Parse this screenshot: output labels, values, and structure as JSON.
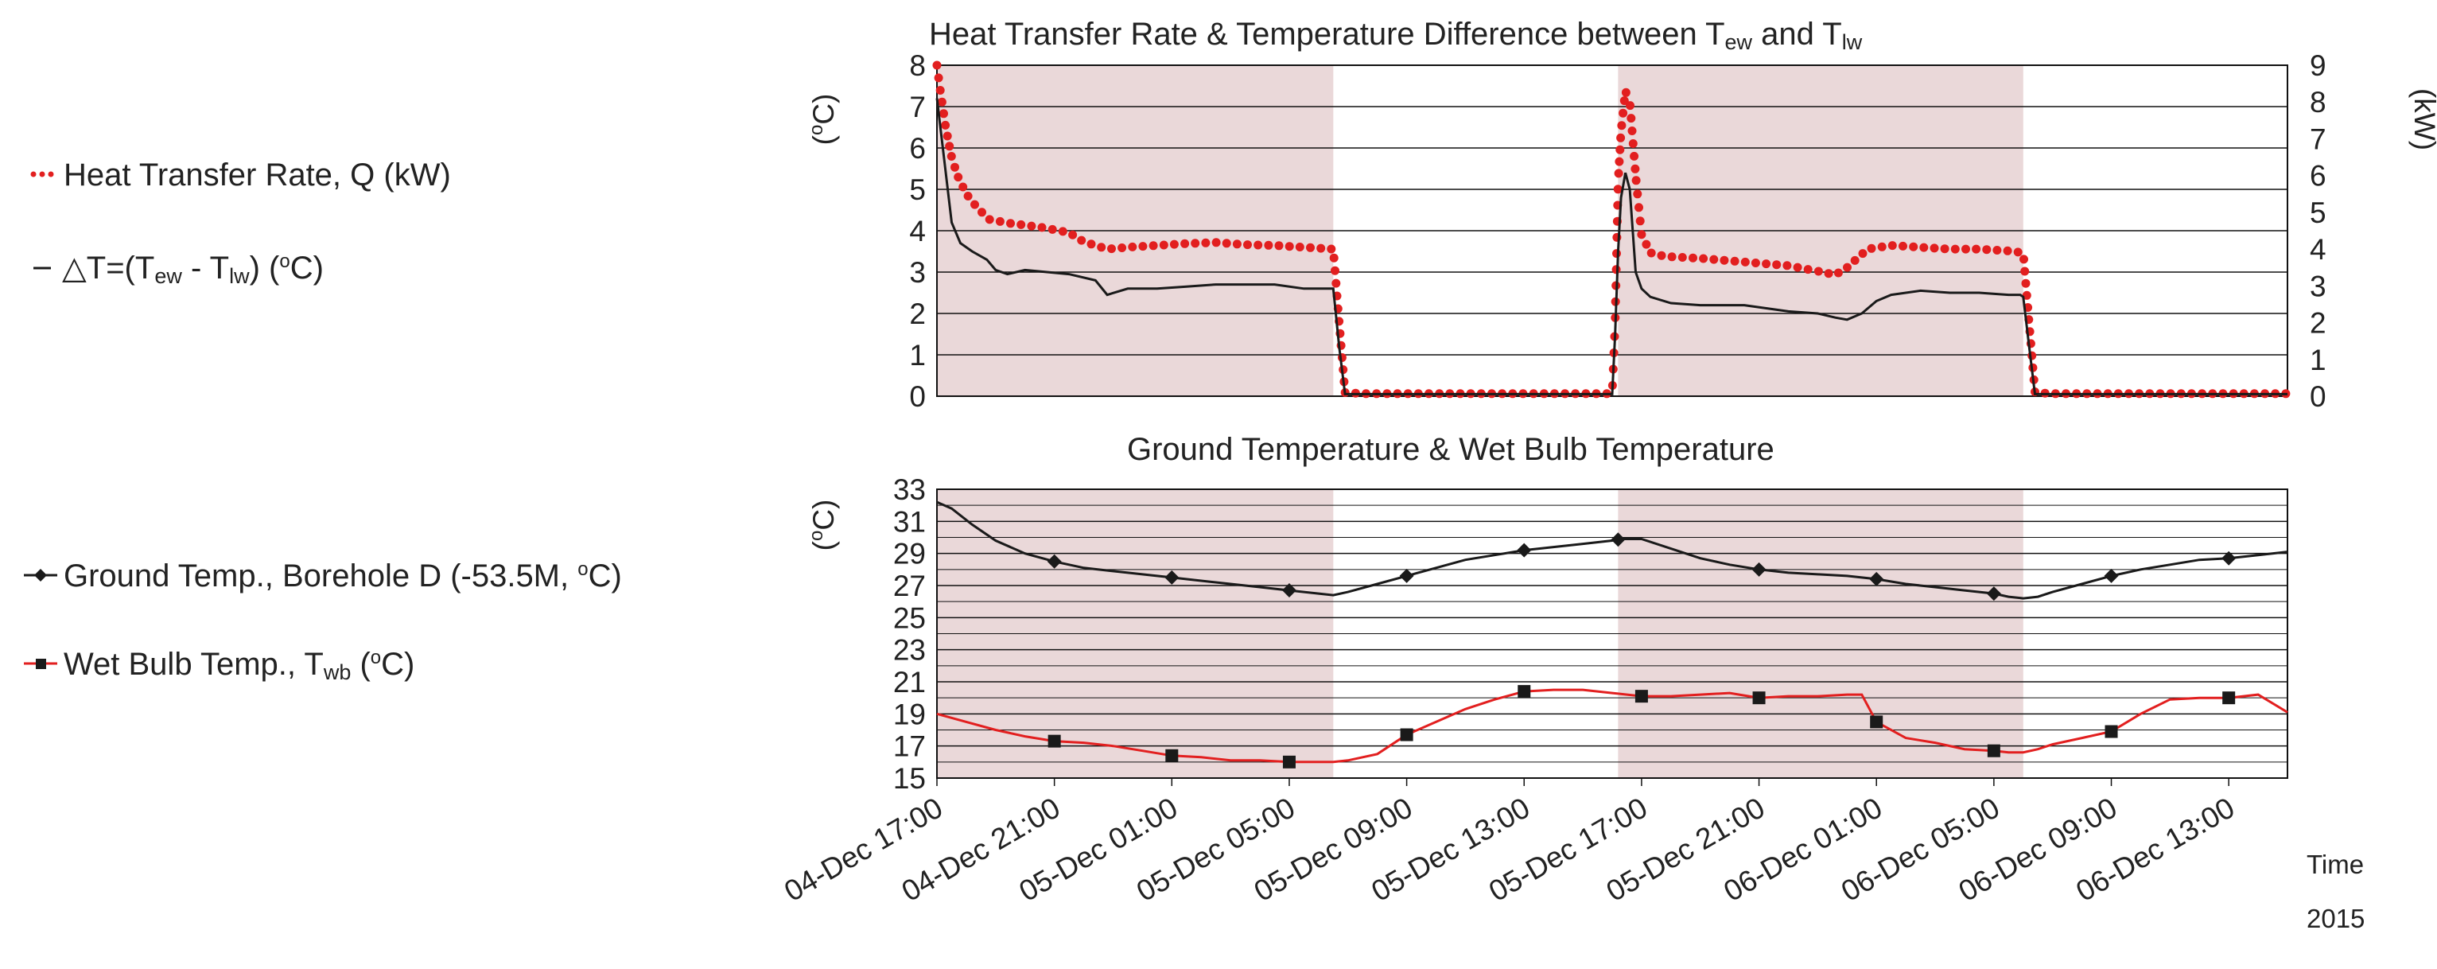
{
  "colors": {
    "shade": "#ead8d9",
    "red": "#e21f1f",
    "black": "#1a1a1a",
    "grid": "#111111"
  },
  "legend_top": {
    "q_label": "Heat Transfer Rate, Q (kW)",
    "dt_prefix": "△T=(T",
    "dt_sub1": "ew",
    "dt_mid": " - T",
    "dt_sub2": "lw",
    "dt_suffix": ") (",
    "dt_unit_deg": "o",
    "dt_unit_end": "C)"
  },
  "legend_bottom": {
    "ground_label": "Ground Temp., Borehole D (-53.5M, ",
    "ground_deg": "o",
    "ground_end": "C)",
    "wb_prefix": "Wet Bulb Temp., T",
    "wb_sub": "wb",
    "wb_unit_pre": "  (",
    "wb_deg": "o",
    "wb_unit_end": "C)"
  },
  "x_axis": {
    "time_label": "Time",
    "year_label": "2015"
  },
  "chart_data": [
    {
      "type": "line",
      "title_prefix": "Heat Transfer Rate & Temperature Difference between T",
      "title_sub1": "ew",
      "title_mid": "  and T",
      "title_sub2": "lw",
      "x_hours": [
        0,
        46
      ],
      "ylabel_left": "(oC)",
      "ylabel_left_parts": [
        "(",
        "o",
        "C)"
      ],
      "ylabel_right": "(kW)",
      "ylim_left": [
        0,
        8
      ],
      "ylim_right": [
        0,
        9
      ],
      "yticks_left": [
        "0",
        "1",
        "2",
        "3",
        "4",
        "5",
        "6",
        "7",
        "8"
      ],
      "yticks_right": [
        "0",
        "1",
        "2",
        "3",
        "4",
        "5",
        "6",
        "7",
        "8",
        "9"
      ],
      "shaded_hours": [
        [
          0,
          13.5
        ],
        [
          23.2,
          37
        ]
      ],
      "series": [
        {
          "name": "Heat Transfer Rate, Q (kW)",
          "axis": "right",
          "style": "dotted",
          "x": [
            0,
            0.1,
            0.3,
            0.5,
            0.7,
            1.0,
            1.4,
            1.8,
            2.5,
            3.5,
            4.5,
            5.0,
            5.8,
            6.5,
            7.5,
            8.5,
            9.5,
            10.5,
            11.5,
            12.5,
            13.5,
            13.7,
            13.9,
            14.5,
            16,
            18,
            20,
            22,
            23,
            23.1,
            23.2,
            23.3,
            23.45,
            23.6,
            23.8,
            24.0,
            24.3,
            24.8,
            26,
            27.5,
            29,
            30,
            30.6,
            31,
            31.7,
            32.5,
            33.5,
            34.5,
            35.5,
            36.5,
            37,
            37.2,
            37.4,
            38,
            40,
            42,
            44,
            46
          ],
          "y": [
            9,
            8.4,
            7.3,
            6.5,
            6.0,
            5.5,
            5.1,
            4.8,
            4.7,
            4.6,
            4.45,
            4.2,
            4.0,
            4.05,
            4.1,
            4.15,
            4.18,
            4.12,
            4.1,
            4.05,
            4.0,
            2.0,
            0.1,
            0.07,
            0.07,
            0.07,
            0.07,
            0.07,
            0.07,
            2.0,
            5.8,
            7.2,
            8.3,
            8.0,
            6.0,
            4.4,
            3.9,
            3.8,
            3.75,
            3.65,
            3.55,
            3.4,
            3.3,
            3.5,
            4.0,
            4.1,
            4.05,
            4.0,
            4.0,
            3.95,
            3.9,
            2.0,
            0.1,
            0.07,
            0.07,
            0.07,
            0.07,
            0.07
          ]
        },
        {
          "name": "△T=(Tew - Tlw) (oC)",
          "axis": "left",
          "style": "solid",
          "x": [
            0,
            0.2,
            0.5,
            0.8,
            1.2,
            1.7,
            2.0,
            2.4,
            3.0,
            4.5,
            5.4,
            5.8,
            6.5,
            7.5,
            8.5,
            9.5,
            10.5,
            11.5,
            12.5,
            13.4,
            13.5,
            13.7,
            13.9,
            14.5,
            16,
            18,
            20,
            22,
            23,
            23.1,
            23.2,
            23.3,
            23.45,
            23.6,
            23.8,
            24.0,
            24.3,
            25,
            26,
            27.5,
            29,
            30,
            30.6,
            31,
            31.5,
            32,
            32.5,
            33.5,
            34.5,
            35.5,
            36.5,
            36.9,
            37.0,
            37.2,
            37.4,
            38,
            40,
            42,
            44,
            46
          ],
          "y": [
            7.2,
            6.0,
            4.2,
            3.7,
            3.5,
            3.3,
            3.05,
            2.95,
            3.05,
            2.95,
            2.8,
            2.45,
            2.6,
            2.6,
            2.65,
            2.7,
            2.7,
            2.7,
            2.6,
            2.6,
            2.6,
            1.2,
            0.05,
            0.05,
            0.05,
            0.05,
            0.05,
            0.05,
            0.05,
            1.5,
            3.5,
            4.8,
            5.4,
            5.0,
            3.0,
            2.6,
            2.4,
            2.25,
            2.2,
            2.2,
            2.05,
            2.0,
            1.9,
            1.85,
            2.0,
            2.3,
            2.45,
            2.55,
            2.5,
            2.5,
            2.45,
            2.45,
            2.4,
            1.2,
            0.05,
            0.05,
            0.05,
            0.05,
            0.05,
            0.05
          ]
        }
      ]
    },
    {
      "type": "line",
      "title": "Ground Temperature & Wet Bulb Temperature",
      "x_hours": [
        0,
        46
      ],
      "ylabel": "(oC)",
      "ylabel_parts": [
        "(",
        "o",
        "C)"
      ],
      "ylim": [
        15,
        33
      ],
      "yticks": [
        "15",
        "17",
        "19",
        "21",
        "23",
        "25",
        "27",
        "29",
        "31",
        "33"
      ],
      "shaded_hours": [
        [
          0,
          13.5
        ],
        [
          23.2,
          37
        ]
      ],
      "xticks": [
        "04-Dec 17:00",
        "04-Dec 21:00",
        "05-Dec 01:00",
        "05-Dec 05:00",
        "05-Dec 09:00",
        "05-Dec 13:00",
        "05-Dec 17:00",
        "05-Dec 21:00",
        "06-Dec 01:00",
        "06-Dec 05:00",
        "06-Dec 09:00",
        "06-Dec 13:00"
      ],
      "xtick_hours": [
        0,
        4,
        8,
        12,
        16,
        20,
        24,
        28,
        32,
        36,
        40,
        44
      ],
      "series": [
        {
          "name": "Ground Temp., Borehole D (-53.5M, oC)",
          "marker": "diamond",
          "color": "#1a1a1a",
          "x": [
            0,
            0.5,
            1.2,
            2,
            3,
            4,
            5,
            6,
            7,
            8,
            9,
            10,
            11,
            12,
            13,
            13.5,
            14,
            15,
            16,
            17,
            18,
            19,
            20,
            21,
            22,
            23,
            23.3,
            24,
            25,
            26,
            27,
            28,
            29,
            30,
            31,
            32,
            33,
            34,
            35,
            36,
            36.5,
            37,
            37.5,
            38,
            39,
            40,
            41,
            42,
            43,
            44,
            45,
            46
          ],
          "y": [
            32.2,
            31.8,
            30.8,
            29.8,
            29.0,
            28.5,
            28.1,
            27.9,
            27.7,
            27.5,
            27.3,
            27.1,
            26.9,
            26.7,
            26.5,
            26.4,
            26.6,
            27.1,
            27.6,
            28.1,
            28.6,
            28.9,
            29.2,
            29.4,
            29.6,
            29.8,
            29.9,
            29.9,
            29.3,
            28.7,
            28.3,
            28.0,
            27.8,
            27.7,
            27.6,
            27.4,
            27.1,
            26.9,
            26.7,
            26.5,
            26.3,
            26.2,
            26.3,
            26.6,
            27.1,
            27.6,
            28.0,
            28.3,
            28.6,
            28.7,
            28.9,
            29.1
          ],
          "marker_x": [
            4,
            8,
            12,
            16,
            20,
            23.2,
            28,
            32,
            36,
            40,
            44
          ]
        },
        {
          "name": "Wet Bulb Temp., Twb (oC)",
          "marker": "square",
          "color": "#e21f1f",
          "x": [
            0,
            1,
            2,
            3,
            4,
            5,
            6,
            7,
            8,
            9,
            10,
            11,
            12,
            13,
            13.5,
            14,
            15,
            16,
            17,
            18,
            19,
            20,
            21,
            22,
            23,
            24,
            25,
            26,
            27,
            28,
            29,
            30,
            31,
            31.5,
            32,
            33,
            34,
            35,
            36,
            36.5,
            37,
            37.5,
            38,
            39,
            40,
            41,
            42,
            43,
            44,
            45,
            46
          ],
          "y": [
            19.0,
            18.5,
            18.0,
            17.6,
            17.3,
            17.2,
            17.0,
            16.7,
            16.4,
            16.3,
            16.1,
            16.1,
            16.0,
            16.0,
            16.0,
            16.1,
            16.5,
            17.7,
            18.5,
            19.3,
            19.9,
            20.4,
            20.5,
            20.5,
            20.3,
            20.1,
            20.1,
            20.2,
            20.3,
            20.0,
            20.1,
            20.1,
            20.2,
            20.2,
            18.5,
            17.5,
            17.2,
            16.8,
            16.7,
            16.6,
            16.6,
            16.8,
            17.1,
            17.5,
            17.9,
            19.0,
            19.9,
            20.0,
            20.0,
            20.2,
            19.1
          ],
          "marker_x": [
            4,
            8,
            12,
            16,
            20,
            24,
            28,
            32,
            36,
            40,
            44
          ]
        }
      ]
    }
  ]
}
